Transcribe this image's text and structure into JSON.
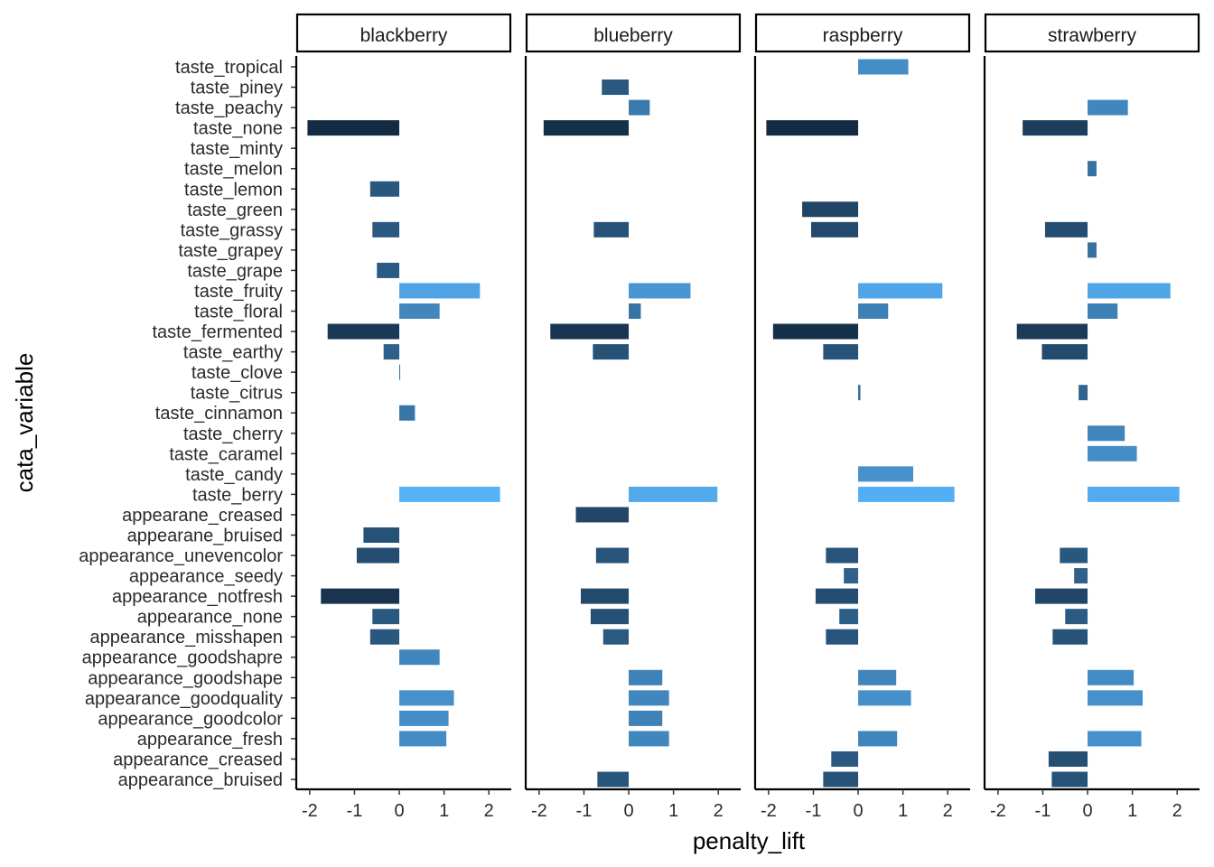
{
  "chart_data": {
    "type": "bar",
    "orientation": "horizontal",
    "facets": [
      "blackberry",
      "blueberry",
      "raspberry",
      "strawberry"
    ],
    "xlabel": "penalty_lift",
    "ylabel": "cata_variable",
    "xlim": [
      -2.3,
      2.5
    ],
    "x_ticks": [
      -2,
      -1,
      0,
      1,
      2
    ],
    "x_tick_labels": [
      "-2",
      "-1",
      "0",
      "1",
      "2"
    ],
    "grid": false,
    "legend": "none",
    "color_scale": {
      "low": "#132B43",
      "high": "#56B1F7"
    },
    "categories": [
      "taste_tropical",
      "taste_piney",
      "taste_peachy",
      "taste_none",
      "taste_minty",
      "taste_melon",
      "taste_lemon",
      "taste_green",
      "taste_grassy",
      "taste_grapey",
      "taste_grape",
      "taste_fruity",
      "taste_floral",
      "taste_fermented",
      "taste_earthy",
      "taste_clove",
      "taste_citrus",
      "taste_cinnamon",
      "taste_cherry",
      "taste_caramel",
      "taste_candy",
      "taste_berry",
      "appearane_creased",
      "appearane_bruised",
      "appearance_unevencolor",
      "appearance_seedy",
      "appearance_notfresh",
      "appearance_none",
      "appearance_misshapen",
      "appearance_goodshapre",
      "appearance_goodshape",
      "appearance_goodquality",
      "appearance_goodcolor",
      "appearance_fresh",
      "appearance_creased",
      "appearance_bruised"
    ],
    "series": [
      {
        "facet": "blackberry",
        "values": [
          null,
          null,
          null,
          -2.05,
          null,
          null,
          -0.65,
          null,
          -0.6,
          null,
          -0.5,
          1.8,
          0.9,
          -1.6,
          -0.35,
          0.02,
          null,
          0.35,
          null,
          null,
          null,
          2.25,
          null,
          -0.8,
          -0.95,
          null,
          -1.75,
          -0.6,
          -0.65,
          0.9,
          null,
          1.22,
          1.1,
          1.05,
          null,
          null
        ]
      },
      {
        "facet": "blueberry",
        "values": [
          null,
          -0.6,
          0.47,
          -1.9,
          null,
          null,
          null,
          null,
          -0.78,
          null,
          null,
          1.38,
          0.27,
          -1.75,
          -0.8,
          null,
          null,
          null,
          null,
          null,
          null,
          1.98,
          -1.18,
          null,
          -0.73,
          null,
          -1.07,
          -0.85,
          -0.57,
          null,
          0.75,
          0.9,
          0.75,
          0.9,
          null,
          -0.7
        ]
      },
      {
        "facet": "raspberry",
        "values": [
          1.12,
          null,
          null,
          -2.05,
          null,
          null,
          null,
          -1.25,
          -1.05,
          null,
          null,
          1.88,
          0.67,
          -1.9,
          -0.78,
          null,
          0.05,
          null,
          null,
          null,
          1.23,
          2.15,
          null,
          null,
          -0.72,
          -0.32,
          -0.95,
          -0.42,
          -0.72,
          null,
          0.85,
          1.18,
          null,
          0.87,
          -0.6,
          -0.78
        ]
      },
      {
        "facet": "strawberry",
        "values": [
          null,
          null,
          0.9,
          -1.45,
          null,
          0.2,
          null,
          null,
          -0.95,
          0.2,
          null,
          1.85,
          0.67,
          -1.58,
          -1.02,
          null,
          -0.2,
          null,
          0.83,
          1.1,
          null,
          2.05,
          null,
          null,
          -0.62,
          -0.3,
          -1.17,
          -0.5,
          -0.78,
          null,
          1.03,
          1.23,
          null,
          1.2,
          -0.87,
          -0.8
        ]
      }
    ]
  }
}
